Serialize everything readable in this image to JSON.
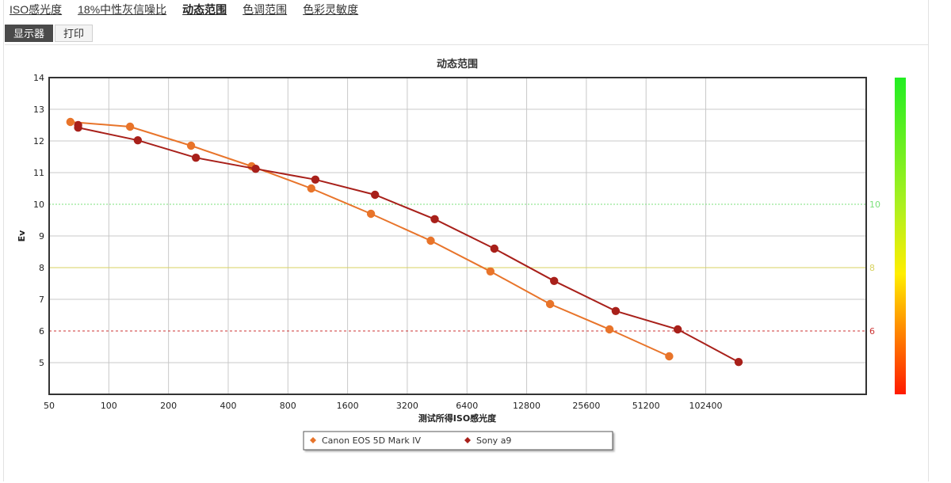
{
  "nav": {
    "tabs": [
      {
        "label": "ISO感光度",
        "active": false
      },
      {
        "label": "18%中性灰信噪比",
        "active": false
      },
      {
        "label": "动态范围",
        "active": true
      },
      {
        "label": "色调范围",
        "active": false
      },
      {
        "label": "色彩灵敏度",
        "active": false
      }
    ]
  },
  "subtabs": [
    {
      "label": "显示器",
      "active": true
    },
    {
      "label": "打印",
      "active": false
    }
  ],
  "colors": {
    "canon": "#e8742a",
    "sony": "#a8201a",
    "line_10": "#7be07b",
    "line_8": "#d8d260",
    "line_6": "#cc3333"
  },
  "chart_data": {
    "type": "line",
    "title": "动态范围",
    "xlabel": "测试所得ISO感光度",
    "ylabel": "Ev",
    "x_scale": "log2",
    "x_ticks": [
      50,
      100,
      200,
      400,
      800,
      1600,
      3200,
      6400,
      12800,
      25600,
      51200,
      102400
    ],
    "xlim": [
      50,
      660000
    ],
    "ylim": [
      4,
      14
    ],
    "y_ticks": [
      5,
      6,
      7,
      8,
      9,
      10,
      11,
      12,
      13,
      14
    ],
    "grid": true,
    "legend_position": "bottom",
    "reference_lines": [
      {
        "value": 10,
        "label": "10",
        "color": "#7be07b",
        "style": "dotted"
      },
      {
        "value": 8,
        "label": "8",
        "color": "#d8d260",
        "style": "solid"
      },
      {
        "value": 6,
        "label": "6",
        "color": "#cc3333",
        "style": "dashed"
      }
    ],
    "color_scale": {
      "position": "right",
      "from": "green",
      "to": "red"
    },
    "series": [
      {
        "name": "Canon EOS 5D Mark IV",
        "color": "#e8742a",
        "points": [
          [
            64,
            12.6
          ],
          [
            128,
            12.45
          ],
          [
            260,
            11.85
          ],
          [
            525,
            11.2
          ],
          [
            1050,
            10.5
          ],
          [
            2100,
            9.7
          ],
          [
            4200,
            8.85
          ],
          [
            8400,
            7.88
          ],
          [
            16800,
            6.85
          ],
          [
            33500,
            6.05
          ],
          [
            67000,
            5.2
          ]
        ]
      },
      {
        "name": "Sony a9",
        "color": "#a8201a",
        "points": [
          [
            70,
            12.5
          ],
          [
            70,
            12.42
          ],
          [
            140,
            12.02
          ],
          [
            275,
            11.47
          ],
          [
            550,
            11.12
          ],
          [
            1100,
            10.78
          ],
          [
            2200,
            10.3
          ],
          [
            4400,
            9.53
          ],
          [
            8800,
            8.6
          ],
          [
            17600,
            7.58
          ],
          [
            36000,
            6.63
          ],
          [
            74000,
            6.05
          ],
          [
            150000,
            5.02
          ]
        ]
      }
    ]
  }
}
